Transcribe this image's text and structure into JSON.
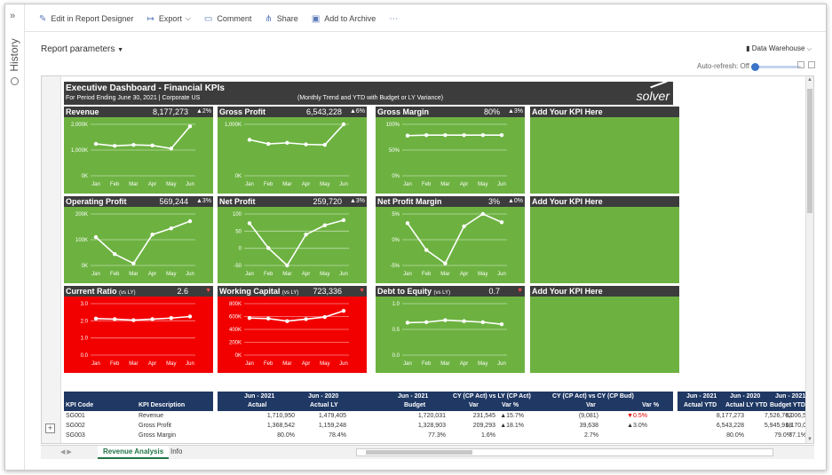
{
  "history": {
    "label": "History",
    "chevron": "»"
  },
  "toolbar": [
    {
      "icon": "pencil-icon",
      "glyph": "✎",
      "label": "Edit in Report Designer",
      "name": "edit-in-report-designer-button"
    },
    {
      "icon": "export-icon",
      "glyph": "↦",
      "label": "Export",
      "name": "export-button",
      "dropdown": "⌵"
    },
    {
      "icon": "comment-icon",
      "glyph": "▭",
      "label": "Comment",
      "name": "comment-button"
    },
    {
      "icon": "share-icon",
      "glyph": "⋔",
      "label": "Share",
      "name": "share-button"
    },
    {
      "icon": "archive-icon",
      "glyph": "▣",
      "label": "Add to Archive",
      "name": "add-to-archive-button"
    },
    {
      "icon": "more-icon",
      "glyph": "⋯",
      "label": "",
      "name": "more-button"
    }
  ],
  "report_parameters": "Report parameters",
  "data_source": "Data Warehouse",
  "auto_refresh": "Auto-refresh: Off",
  "dashboard": {
    "title": "Executive Dashboard - Financial KPIs",
    "subtitle": "For Period Ending June 30, 2021 | Corporate US",
    "mode": "(Monthly Trend and YTD with Budget or LY Variance)",
    "logo": "solver"
  },
  "colors": {
    "green": "#6db241",
    "red": "#f20000",
    "header": "#3c3c3c",
    "table_header": "#1f3864"
  },
  "tiles": [
    {
      "title": "Revenue",
      "sub": "",
      "value": "8,177,273",
      "delta": "▲2%",
      "bg": "green",
      "labels": [
        "2,000K",
        "1,000K",
        "0K"
      ],
      "months": [
        "Jan",
        "Feb",
        "Mar",
        "Apr",
        "May",
        "Jun"
      ],
      "values": [
        0.62,
        0.58,
        0.6,
        0.59,
        0.53,
        0.96
      ]
    },
    {
      "title": "Gross Profit",
      "sub": "",
      "value": "6,543,228",
      "delta": "▲6%",
      "bg": "green",
      "labels": [
        "1,000K",
        "0K"
      ],
      "months": [
        "Jan",
        "Feb",
        "Mar",
        "Apr",
        "May",
        "Jun"
      ],
      "values": [
        0.7,
        0.62,
        0.64,
        0.61,
        0.6,
        1.0
      ]
    },
    {
      "title": "Gross Margin",
      "sub": "",
      "value": "80%",
      "delta": "▲3%",
      "bg": "green",
      "labels": [
        "100%",
        "50%",
        "0%"
      ],
      "months": [
        "Jan",
        "Feb",
        "Mar",
        "Apr",
        "May",
        "Jun"
      ],
      "values": [
        0.78,
        0.79,
        0.79,
        0.79,
        0.79,
        0.79
      ]
    },
    {
      "title": "Add Your KPI Here",
      "empty": true
    },
    {
      "title": "Operating Profit",
      "sub": "",
      "value": "569,244",
      "delta": "▲3%",
      "bg": "green",
      "labels": [
        "200K",
        "100K",
        "0K"
      ],
      "months": [
        "Jan",
        "Feb",
        "Mar",
        "Apr",
        "May",
        "Jun"
      ],
      "values": [
        0.55,
        0.22,
        0.04,
        0.6,
        0.72,
        0.86
      ]
    },
    {
      "title": "Net Profit",
      "sub": "",
      "value": "259,720",
      "delta": "▲3%",
      "bg": "green",
      "labels": [
        "100",
        "50",
        "0",
        "-50"
      ],
      "months": [
        "Jan",
        "Feb",
        "Mar",
        "Apr",
        "May",
        "Jun"
      ],
      "values": [
        0.82,
        0.34,
        0.0,
        0.6,
        0.78,
        0.88
      ]
    },
    {
      "title": "Net Profit Margin",
      "sub": "",
      "value": "3%",
      "delta": "▲0%",
      "bg": "green",
      "labels": [
        "5%",
        "0%",
        "-5%"
      ],
      "months": [
        "Jan",
        "Feb",
        "Mar",
        "Apr",
        "May",
        "Jun"
      ],
      "values": [
        0.82,
        0.3,
        0.04,
        0.76,
        1.0,
        0.84
      ]
    },
    {
      "title": "Add Your KPI Here",
      "empty": true
    },
    {
      "title": "Current Ratio",
      "sub": "(vs LY)",
      "value": "2.6",
      "delta": "▼",
      "bg": "red",
      "labels": [
        "3.0",
        "2.0",
        "1.0",
        "0.0"
      ],
      "months": [
        "Jan",
        "Feb",
        "Mar",
        "Apr",
        "May",
        "Jun"
      ],
      "values": [
        0.71,
        0.7,
        0.68,
        0.7,
        0.72,
        0.75
      ]
    },
    {
      "title": "Working Capital",
      "sub": "(vs LY)",
      "value": "723,336",
      "delta": "▼",
      "bg": "red",
      "labels": [
        "800K",
        "600K",
        "400K",
        "200K",
        "0K"
      ],
      "months": [
        "Jan",
        "Feb",
        "Mar",
        "Apr",
        "May",
        "Jun"
      ],
      "values": [
        0.72,
        0.71,
        0.66,
        0.7,
        0.74,
        0.86
      ]
    },
    {
      "title": "Debt to Equity",
      "sub": "(vs LY)",
      "value": "0.7",
      "delta": "▼",
      "bg": "green",
      "labels": [
        "1.0",
        "0.5",
        "0.0"
      ],
      "months": [
        "Jan",
        "Feb",
        "Mar",
        "Apr",
        "May",
        "Jun"
      ],
      "values": [
        0.63,
        0.64,
        0.68,
        0.66,
        0.64,
        0.6
      ]
    },
    {
      "title": "Add Your KPI Here",
      "empty": true
    }
  ],
  "table": {
    "headers": {
      "code": "KPI Code",
      "desc": "KPI Description",
      "a1": "Jun - 2021",
      "a2": "Actual",
      "b1": "Jun - 2020",
      "b2": "Actual LY",
      "c1": "Jun - 2021",
      "c2": "Budget",
      "d1": "CY (CP Act) vs LY (CP Act)",
      "d2": "Var",
      "d3": "Var %",
      "e1": "CY (CP Act) vs CY (CP Bud)",
      "e2": "Var",
      "e3": "Var %",
      "f1": "Jun - 2021",
      "f2": "Actual YTD",
      "g1": "Jun - 2020",
      "g2": "Actual LY YTD",
      "h1": "Jun - 2021",
      "h2": "Budget YTD"
    },
    "rows": [
      {
        "code": "SG001",
        "desc": "Revenue",
        "a": "1,710,950",
        "b": "1,479,405",
        "c": "1,720,031",
        "d": "231,545",
        "dp": "▲15.7%",
        "e": "(9,081)",
        "ep": "▼0.5%",
        "f": "8,177,273",
        "g": "7,526,762",
        "h": "8,006,5"
      },
      {
        "code": "SG002",
        "desc": "Gross Profit",
        "a": "1,368,542",
        "b": "1,159,248",
        "c": "1,328,903",
        "d": "209,293",
        "dp": "▲18.1%",
        "e": "39,638",
        "ep": "▲3.0%",
        "f": "6,543,228",
        "g": "5,945,918",
        "h": "6,170,0"
      },
      {
        "code": "SG003",
        "desc": "Gross Margin",
        "a": "80.0%",
        "b": "78.4%",
        "c": "77.3%",
        "d": "1.6%",
        "dp": "",
        "e": "2.7%",
        "ep": "",
        "f": "80.0%",
        "g": "79.0%",
        "h": "77.1%"
      }
    ]
  },
  "sheet_tabs": [
    "Revenue Analysis",
    "Info"
  ]
}
